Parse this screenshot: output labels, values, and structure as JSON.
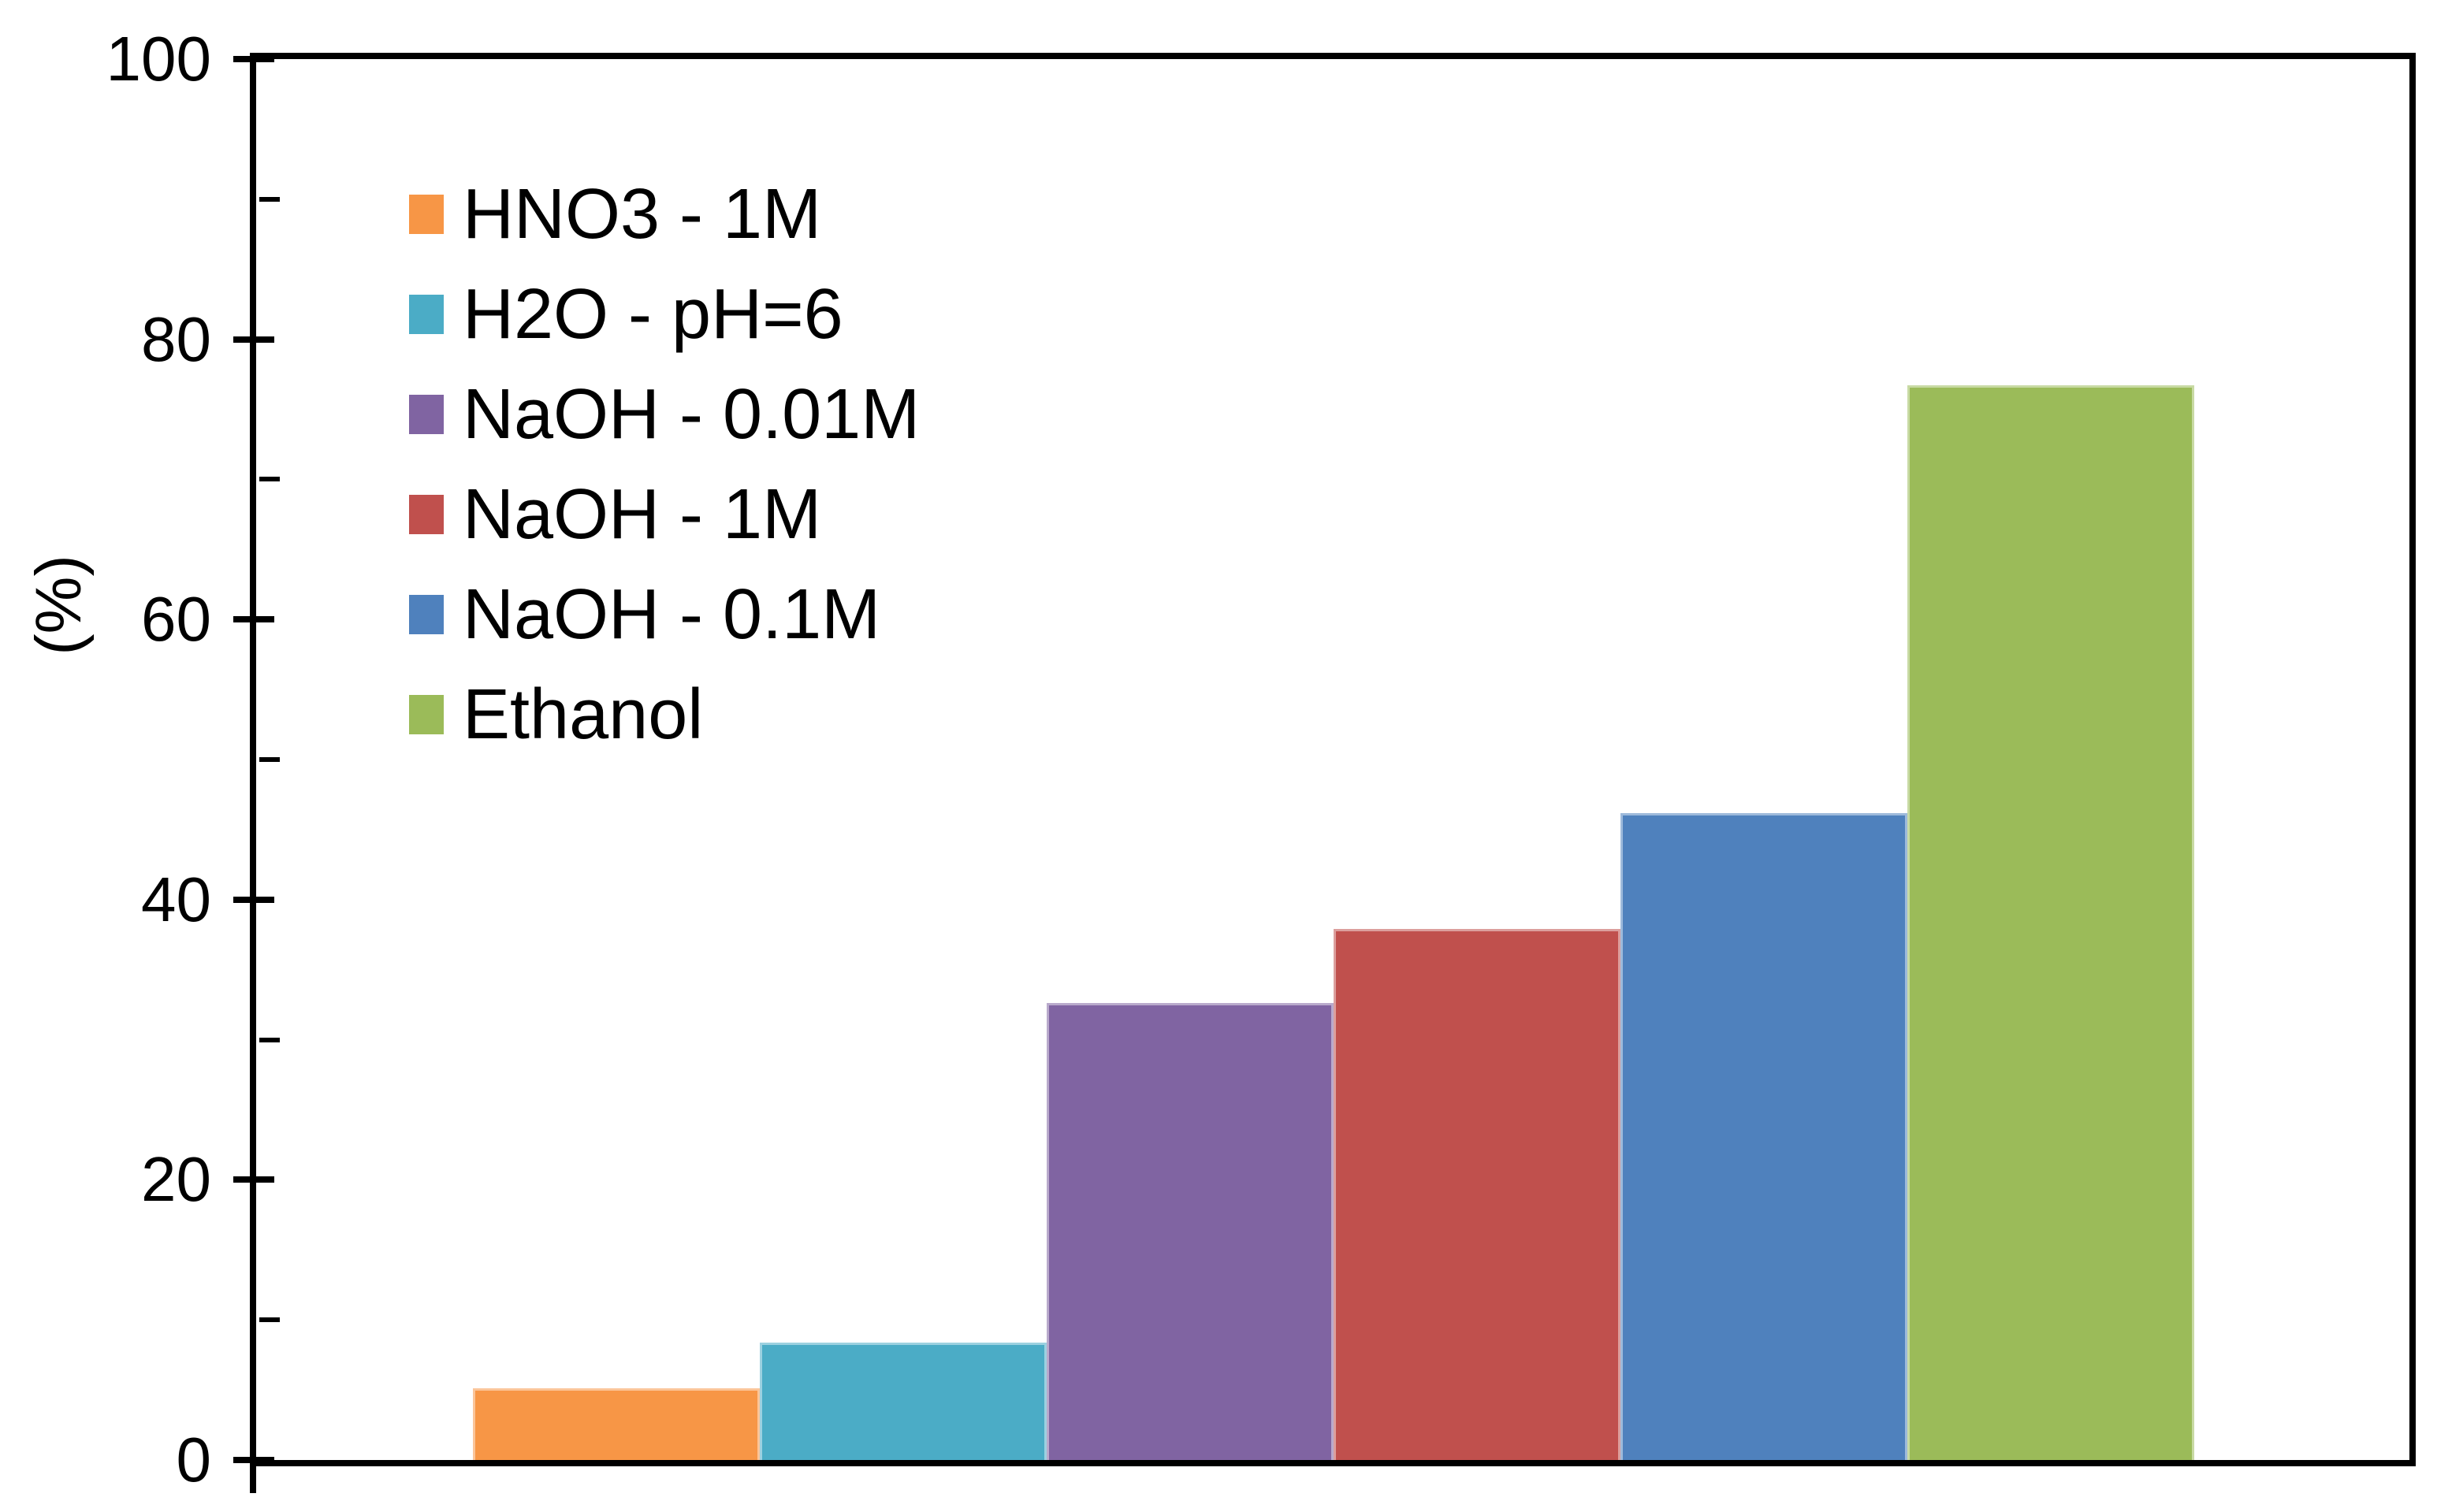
{
  "chart_data": {
    "type": "bar",
    "title": "",
    "xlabel": "",
    "ylabel": "(%)",
    "ylim": [
      0,
      100
    ],
    "y_major_ticks": [
      0,
      20,
      40,
      60,
      80,
      100
    ],
    "y_minor_tick_step": 10,
    "grid": false,
    "legend_position": "upper-left-inside",
    "categories": [
      "HNO3 - 1M",
      "H2O - pH=6",
      "NaOH - 0.01M",
      "NaOH - 1M",
      "NaOH - 0.1M",
      "Ethanol"
    ],
    "series": [
      {
        "name": "HNO3 - 1M",
        "value": 5.1,
        "color": "#F79646"
      },
      {
        "name": "H2O - pH=6",
        "value": 8.4,
        "color": "#4BACC6"
      },
      {
        "name": "NaOH - 0.01M",
        "value": 32.6,
        "color": "#8064A2"
      },
      {
        "name": "NaOH - 1M",
        "value": 37.9,
        "color": "#C0504D"
      },
      {
        "name": "NaOH - 0.1M",
        "value": 46.2,
        "color": "#4F81BD"
      },
      {
        "name": "Ethanol",
        "value": 76.7,
        "color": "#9BBB59"
      }
    ],
    "axis_color": "#000000",
    "text_color": "#000000",
    "background_color": "#FFFFFF"
  }
}
